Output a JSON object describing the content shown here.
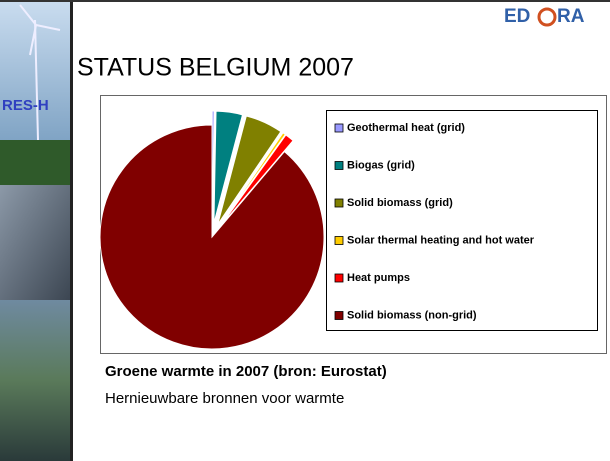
{
  "logo_left": "ED",
  "logo_right": "RA",
  "side_label": "RES-H",
  "slide_title": "STATUS BELGIUM 2007",
  "chart_data": {
    "type": "pie",
    "categories": [
      "Geothermal heat (grid)",
      "Biogas (grid)",
      "Solid biomass (grid)",
      "Solar thermal heating and hot water",
      "Heat pumps",
      "Solid biomass (non-grid)"
    ],
    "values": [
      0.3,
      3.8,
      5.4,
      0.4,
      1.3,
      88.8
    ],
    "colors": [
      "#9999ff",
      "#008080",
      "#808000",
      "#ffcc00",
      "#ff0000",
      "#800000"
    ],
    "legend": "right"
  },
  "caption": "Groene warmte in 2007 (bron: Eurostat)",
  "subcaption": "Hernieuwbare bronnen voor warmte"
}
